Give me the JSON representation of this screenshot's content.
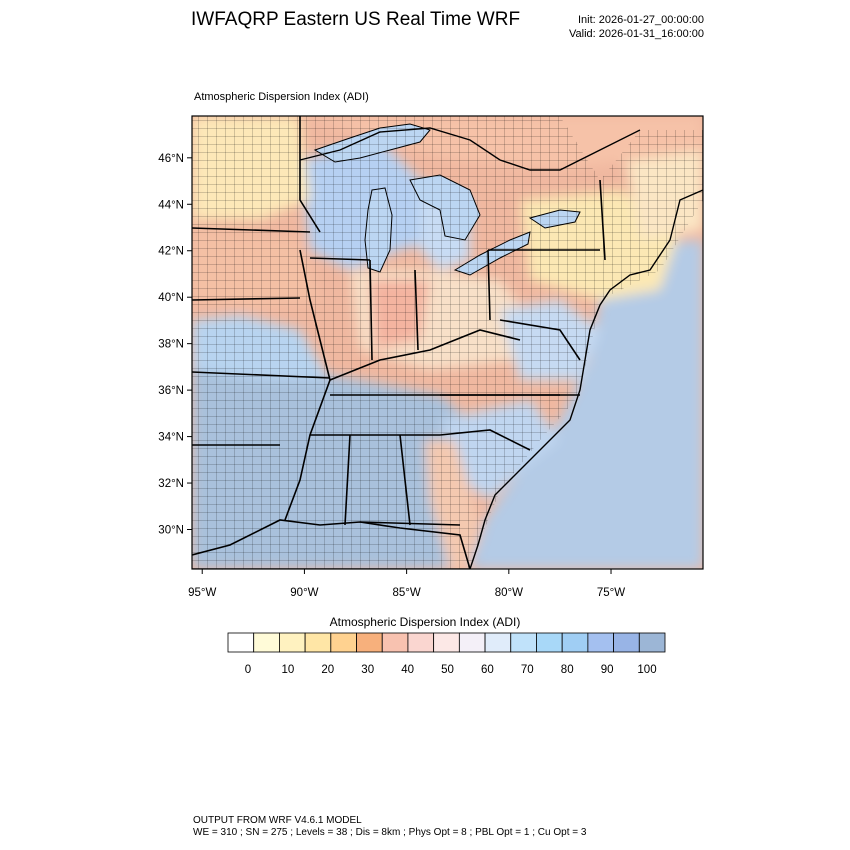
{
  "header": {
    "title": "IWFAQRP Eastern US Real Time WRF",
    "init": "Init: 2026-01-27_00:00:00",
    "valid": "Valid: 2026-01-31_16:00:00"
  },
  "map": {
    "field_title": "Atmospheric Dispersion Index   (ADI)",
    "projection": "latitude-longitude",
    "lat_range": [
      28.3,
      47.8
    ],
    "lon_range": [
      -95.5,
      -70.5
    ],
    "lat_ticks": [
      "30°N",
      "32°N",
      "34°N",
      "36°N",
      "38°N",
      "40°N",
      "42°N",
      "44°N",
      "46°N"
    ],
    "lat_tick_values": [
      30,
      32,
      34,
      36,
      38,
      40,
      42,
      44,
      46
    ],
    "lon_ticks": [
      "95°W",
      "90°W",
      "85°W",
      "80°W",
      "75°W"
    ],
    "lon_tick_values": [
      -95,
      -90,
      -85,
      -80,
      -75
    ],
    "boundaries": [
      "states",
      "counties",
      "coastlines"
    ]
  },
  "colorbar": {
    "title": "Atmospheric Dispersion Index (ADI)",
    "labels": [
      "0",
      "10",
      "20",
      "30",
      "40",
      "50",
      "60",
      "70",
      "80",
      "90",
      "100"
    ],
    "colors": [
      "#ffffff",
      "#fffbd8",
      "#fff2c0",
      "#ffe6a6",
      "#ffd290",
      "#f7b07c",
      "#f8c2b0",
      "#fad6d0",
      "#fce8e6",
      "#f4f0f8",
      "#e0ecfa",
      "#c0e2fa",
      "#a8d8f8",
      "#a0cef4",
      "#a4c0f0",
      "#98b4e6",
      "#9cb6d6"
    ]
  },
  "footer": {
    "line1": "OUTPUT FROM WRF V4.6.1 MODEL",
    "line2": "WE = 310 ; SN = 275 ; Levels = 38 ; Dis = 8km ; Phys Opt = 8 ; PBL Opt = 1 ; Cu Opt = 3"
  }
}
